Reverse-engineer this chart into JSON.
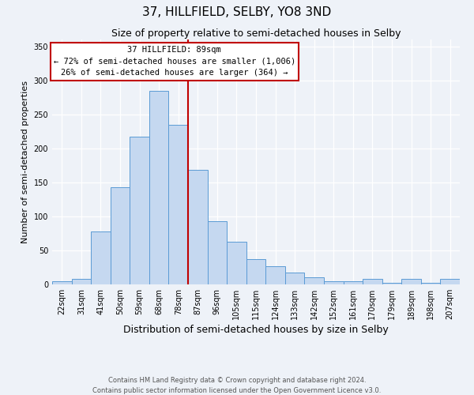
{
  "title": "37, HILLFIELD, SELBY, YO8 3ND",
  "subtitle": "Size of property relative to semi-detached houses in Selby",
  "xlabel": "Distribution of semi-detached houses by size in Selby",
  "ylabel": "Number of semi-detached properties",
  "footer_line1": "Contains HM Land Registry data © Crown copyright and database right 2024.",
  "footer_line2": "Contains public sector information licensed under the Open Government Licence v3.0.",
  "bar_labels": [
    "22sqm",
    "31sqm",
    "41sqm",
    "50sqm",
    "59sqm",
    "68sqm",
    "78sqm",
    "87sqm",
    "96sqm",
    "105sqm",
    "115sqm",
    "124sqm",
    "133sqm",
    "142sqm",
    "152sqm",
    "161sqm",
    "170sqm",
    "179sqm",
    "189sqm",
    "198sqm",
    "207sqm"
  ],
  "bar_heights": [
    5,
    8,
    78,
    143,
    217,
    284,
    235,
    168,
    93,
    63,
    37,
    27,
    17,
    10,
    5,
    5,
    8,
    2,
    8,
    2,
    8
  ],
  "bar_color": "#c5d8f0",
  "bar_edge_color": "#5b9bd5",
  "vline_x": 7,
  "vline_color": "#c00000",
  "annotation_title": "37 HILLFIELD: 89sqm",
  "annotation_line1": "← 72% of semi-detached houses are smaller (1,006)",
  "annotation_line2": "26% of semi-detached houses are larger (364) →",
  "annotation_box_color": "#c00000",
  "ylim": [
    0,
    360
  ],
  "yticks": [
    0,
    50,
    100,
    150,
    200,
    250,
    300,
    350
  ],
  "background_color": "#eef2f8",
  "title_fontsize": 11,
  "subtitle_fontsize": 9,
  "xlabel_fontsize": 9,
  "ylabel_fontsize": 8,
  "tick_fontsize": 7,
  "annotation_fontsize": 7.5,
  "footer_fontsize": 6
}
